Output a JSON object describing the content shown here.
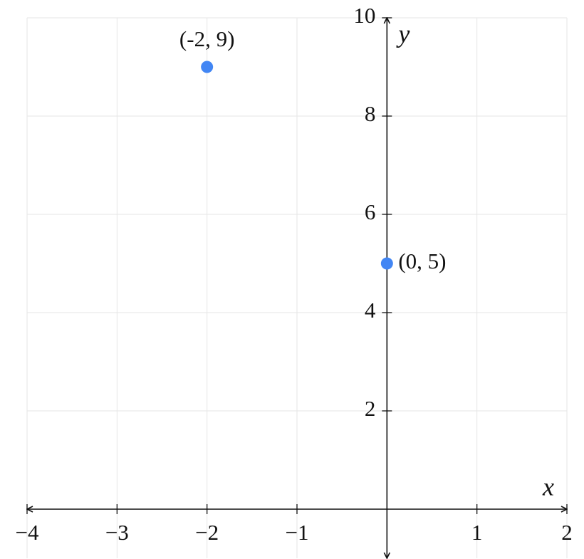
{
  "chart_data": {
    "type": "scatter",
    "x": [
      -2,
      0
    ],
    "values": [
      9,
      5
    ],
    "point_labels": [
      "(-2, 9)",
      "(0, 5)"
    ],
    "color": "#4286f4",
    "x_label": "x",
    "y_label": "y",
    "xlim": [
      -4,
      2
    ],
    "ylim": [
      -1,
      10
    ],
    "xticks": [
      {
        "value": -4,
        "label": "−4"
      },
      {
        "value": -3,
        "label": "−3"
      },
      {
        "value": -2,
        "label": "−2"
      },
      {
        "value": -1,
        "label": "−1"
      },
      1,
      2
    ],
    "yticks": [
      2,
      4,
      6,
      8,
      10
    ],
    "grid": true
  }
}
